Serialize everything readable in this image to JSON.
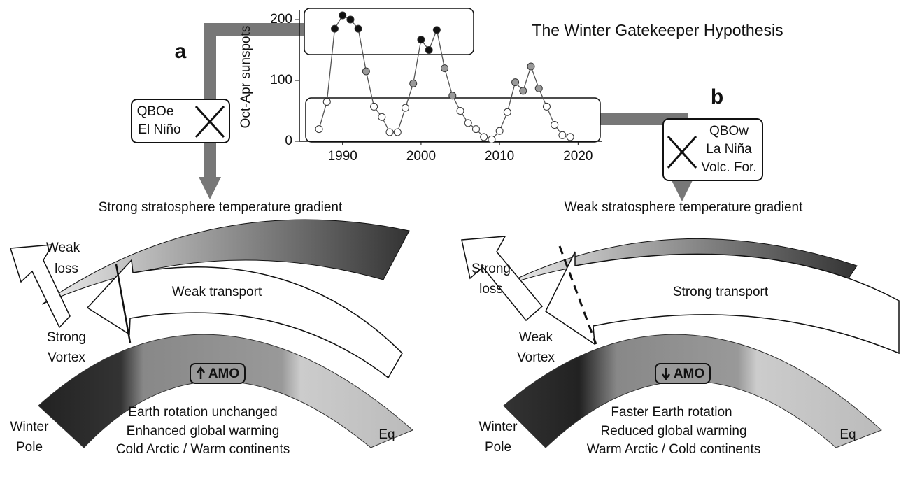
{
  "title": "The Winter Gatekeeper Hypothesis",
  "panel_labels": [
    "a",
    "b"
  ],
  "chart_data": {
    "type": "line",
    "ylabel": "Oct-Apr sunspots",
    "x": [
      1987,
      1988,
      1989,
      1990,
      1991,
      1992,
      1993,
      1994,
      1995,
      1996,
      1997,
      1998,
      1999,
      2000,
      2001,
      2002,
      2003,
      2004,
      2005,
      2006,
      2007,
      2008,
      2009,
      2010,
      2011,
      2012,
      2013,
      2014,
      2015,
      2016,
      2017,
      2018,
      2019
    ],
    "values": [
      20,
      65,
      185,
      207,
      200,
      185,
      115,
      57,
      40,
      15,
      15,
      55,
      95,
      167,
      150,
      183,
      120,
      75,
      50,
      30,
      20,
      7,
      3,
      17,
      48,
      97,
      83,
      123,
      87,
      57,
      27,
      10,
      7
    ],
    "point_colors": [
      "#fff",
      "#fff",
      "#111",
      "#111",
      "#111",
      "#111",
      "#999",
      "#fff",
      "#fff",
      "#fff",
      "#fff",
      "#fff",
      "#999",
      "#111",
      "#111",
      "#111",
      "#999",
      "#999",
      "#fff",
      "#fff",
      "#fff",
      "#fff",
      "#fff",
      "#fff",
      "#fff",
      "#999",
      "#999",
      "#999",
      "#999",
      "#fff",
      "#fff",
      "#fff",
      "#fff"
    ],
    "line_color": "#555",
    "xlim": [
      1984.5,
      2023
    ],
    "ylim": [
      0,
      215
    ],
    "xticks": [
      1990,
      2000,
      2010,
      2020
    ],
    "yticks": [
      0,
      100,
      200
    ]
  },
  "left_box": [
    "QBOe",
    "El Niño"
  ],
  "right_box": [
    "QBOw",
    "La Niña",
    "Volc. For."
  ],
  "panels": [
    {
      "heading": "Strong stratosphere temperature gradient",
      "loss": [
        "Weak",
        "loss"
      ],
      "transport": "Weak transport",
      "vortex": [
        "Strong",
        "Vortex"
      ],
      "pole": [
        "Winter",
        "Pole"
      ],
      "eq": "Eq",
      "amo": "AMO",
      "notes": [
        "Earth rotation unchanged",
        "Enhanced global warming",
        "Cold Arctic / Warm continents"
      ]
    },
    {
      "heading": "Weak stratosphere temperature gradient",
      "loss": [
        "Strong",
        "loss"
      ],
      "transport": "Strong transport",
      "vortex": [
        "Weak",
        "Vortex"
      ],
      "pole": [
        "Winter",
        "Pole"
      ],
      "eq": "Eq",
      "amo": "AMO",
      "notes": [
        "Faster Earth rotation",
        "Reduced global warming",
        "Warm Arctic / Cold continents"
      ]
    }
  ]
}
